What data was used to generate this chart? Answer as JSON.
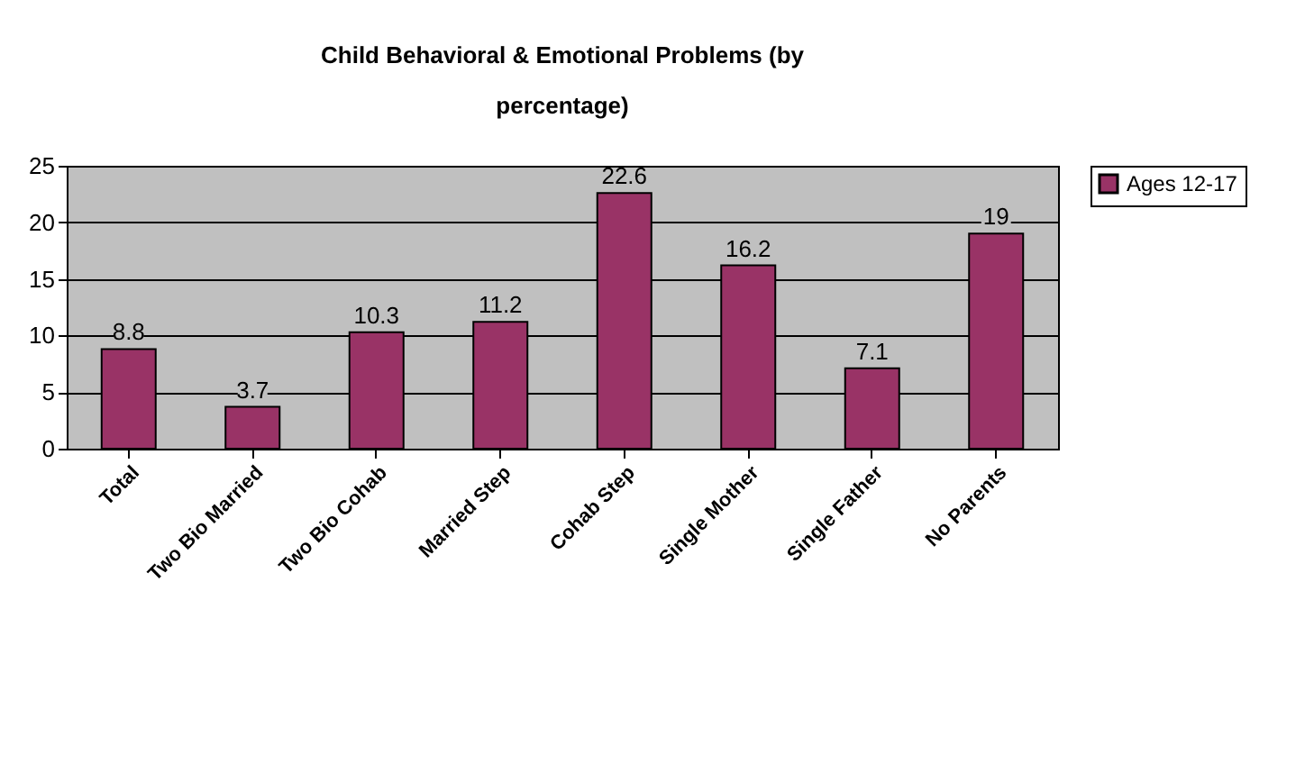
{
  "chart_data": {
    "type": "bar",
    "title": "Child Behavioral & Emotional Problems (by percentage)",
    "categories": [
      "Total",
      "Two Bio Married",
      "Two Bio Cohab",
      "Married Step",
      "Cohab Step",
      "Single Mother",
      "Single Father",
      "No Parents"
    ],
    "series": [
      {
        "name": "Ages 12-17",
        "color": "#993366",
        "values": [
          8.8,
          3.7,
          10.3,
          11.2,
          22.6,
          16.2,
          7.1,
          19
        ]
      }
    ],
    "ylim": [
      0,
      25
    ],
    "yticks": [
      0,
      5,
      10,
      15,
      20,
      25
    ],
    "grid": "y",
    "legend": "right",
    "data_labels": true
  }
}
